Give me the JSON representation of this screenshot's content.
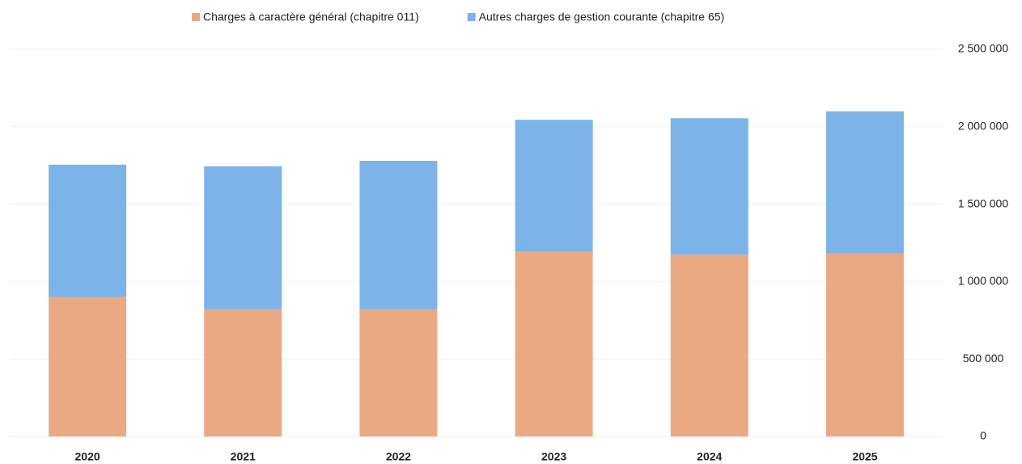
{
  "chart_data": {
    "type": "stacked_bar",
    "categories": [
      "2020",
      "2021",
      "2022",
      "2023",
      "2024",
      "2025"
    ],
    "series": [
      {
        "name": "Charges à caractère général (chapitre 011)",
        "color": "#eba983",
        "values": [
          900000,
          820000,
          820000,
          1195000,
          1175000,
          1180000
        ]
      },
      {
        "name": "Autres charges de gestion courante (chapitre 65)",
        "color": "#7cb4e9",
        "values": [
          855000,
          925000,
          960000,
          850000,
          880000,
          920000
        ]
      }
    ],
    "ylim": [
      0,
      2500000
    ],
    "yticks": [
      0,
      {
        "value": 500000,
        "label": "500 000"
      },
      {
        "value": 1000000,
        "label": "1 000 000"
      },
      {
        "value": 1500000,
        "label": "1 500 000"
      },
      {
        "value": 2000000,
        "label": "2 000 000"
      },
      {
        "value": 2500000,
        "label": "2 500 000"
      }
    ],
    "grid": true,
    "legend": "top"
  }
}
